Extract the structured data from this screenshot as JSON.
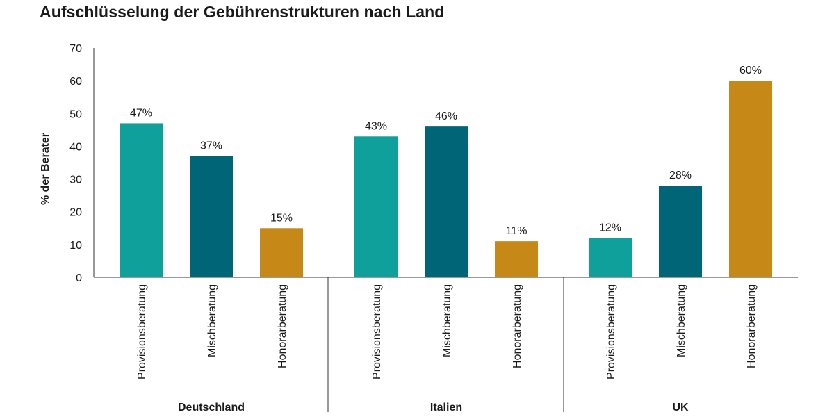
{
  "chart_data": {
    "type": "bar",
    "title": "Aufschlüsselung der Gebührenstrukturen nach Land",
    "xlabel": "",
    "ylabel": "% der Berater",
    "ylim": [
      0,
      70
    ],
    "yticks": [
      0,
      10,
      20,
      30,
      40,
      50,
      60,
      70
    ],
    "grid": false,
    "groups": [
      {
        "name": "Deutschland",
        "bars": [
          {
            "category": "Provisionsberatung",
            "value": 47,
            "label": "47%",
            "color": "#0fa09b"
          },
          {
            "category": "Mischberatung",
            "value": 37,
            "label": "37%",
            "color": "#006677"
          },
          {
            "category": "Honorarberatung",
            "value": 15,
            "label": "15%",
            "color": "#c68817"
          }
        ]
      },
      {
        "name": "Italien",
        "bars": [
          {
            "category": "Provisionsberatung",
            "value": 43,
            "label": "43%",
            "color": "#0fa09b"
          },
          {
            "category": "Mischberatung",
            "value": 46,
            "label": "46%",
            "color": "#006677"
          },
          {
            "category": "Honorarberatung",
            "value": 11,
            "label": "11%",
            "color": "#c68817"
          }
        ]
      },
      {
        "name": "UK",
        "bars": [
          {
            "category": "Provisionsberatung",
            "value": 12,
            "label": "12%",
            "color": "#0fa09b"
          },
          {
            "category": "Mischberatung",
            "value": 28,
            "label": "28%",
            "color": "#006677"
          },
          {
            "category": "Honorarberatung",
            "value": 60,
            "label": "60%",
            "color": "#c68817"
          }
        ]
      }
    ]
  }
}
